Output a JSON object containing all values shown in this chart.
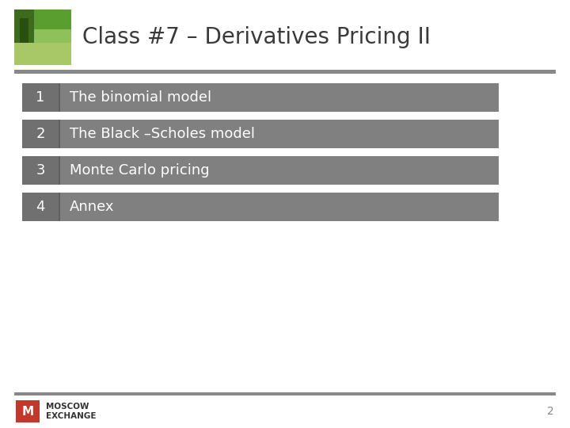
{
  "title": "Class #7 – Derivatives Pricing II",
  "title_fontsize": 20,
  "title_color": "#3a3a3a",
  "background_color": "#ffffff",
  "header_line_color": "#888888",
  "items": [
    {
      "number": "1",
      "text": "The binomial model"
    },
    {
      "number": "2",
      "text": "The Black –Scholes model"
    },
    {
      "number": "3",
      "text": "Monte Carlo pricing"
    },
    {
      "number": "4",
      "text": "Annex"
    }
  ],
  "row_bg_color": "#808080",
  "row_num_bg_color": "#707070",
  "row_text_color": "#ffffff",
  "row_number_fontsize": 13,
  "row_text_fontsize": 13,
  "footer_line_color": "#888888",
  "footer_text_line1": "MOSCOW",
  "footer_text_line2": "EXCHANGE",
  "footer_page": "2",
  "footer_logo_color": "#c0392b",
  "footer_fontsize": 7.5,
  "img_colors": [
    "#7ab04a",
    "#4a7a2a",
    "#5a9a3a",
    "#3a6020",
    "#8aba5a"
  ],
  "fig_width": 7.2,
  "fig_height": 5.4,
  "dpi": 100
}
